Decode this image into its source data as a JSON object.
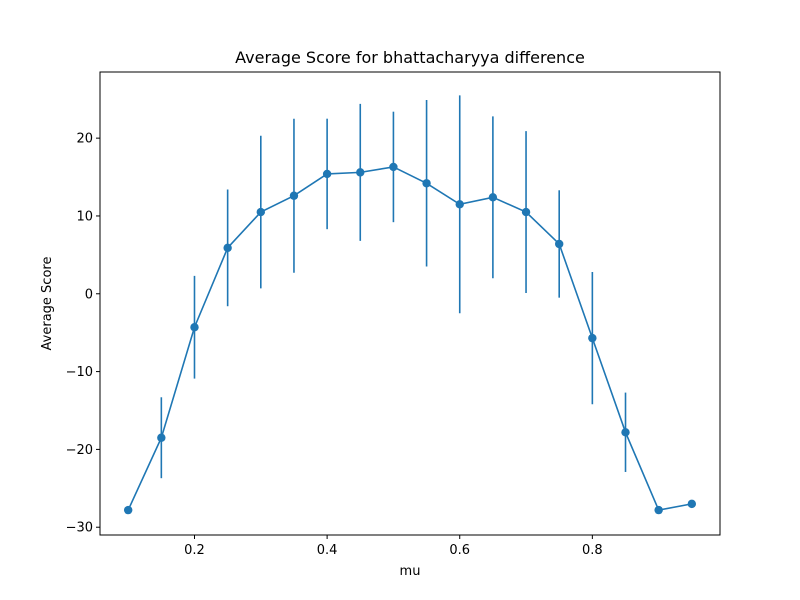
{
  "chart_data": {
    "type": "line",
    "title": "Average Score for bhattacharyya difference",
    "xlabel": "mu",
    "ylabel": "Average Score",
    "xlim": [
      0.0575,
      0.9925
    ],
    "ylim": [
      -31,
      28.5
    ],
    "xticks": [
      0.2,
      0.4,
      0.6,
      0.8
    ],
    "xtick_labels": [
      "0.2",
      "0.4",
      "0.6",
      "0.8"
    ],
    "yticks": [
      -30,
      -20,
      -10,
      0,
      10,
      20
    ],
    "ytick_labels": [
      "−30",
      "−20",
      "−10",
      "0",
      "10",
      "20"
    ],
    "grid": false,
    "series": [
      {
        "color": "#1f77b4",
        "marker": "circle",
        "x": [
          0.1,
          0.15,
          0.2,
          0.25,
          0.3,
          0.35,
          0.4,
          0.45,
          0.5,
          0.55,
          0.6,
          0.65,
          0.7,
          0.75,
          0.8,
          0.85,
          0.9,
          0.95
        ],
        "y": [
          -27.8,
          -18.5,
          -4.3,
          5.9,
          10.5,
          12.6,
          15.4,
          15.6,
          16.3,
          14.2,
          11.5,
          12.4,
          10.5,
          6.4,
          -5.7,
          -17.8,
          -27.8,
          -27.0
        ],
        "yerr": [
          0.0,
          5.2,
          6.6,
          7.5,
          9.8,
          9.9,
          7.1,
          8.8,
          7.1,
          10.7,
          14.0,
          10.4,
          10.4,
          6.9,
          8.5,
          5.1,
          0.0,
          0.0
        ]
      }
    ]
  }
}
